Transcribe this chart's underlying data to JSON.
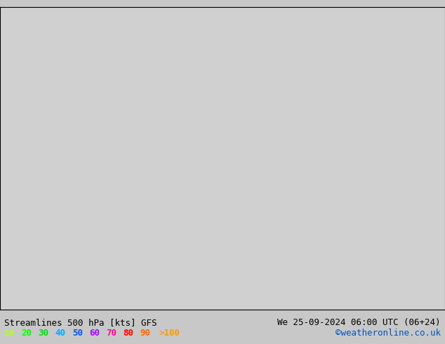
{
  "title_left": "Streamlines 500 hPa [kts] GFS",
  "title_right": "We 25-09-2024 06:00 UTC (06+24)",
  "credit": "©weatheronline.co.uk",
  "legend_values": [
    10,
    20,
    30,
    40,
    50,
    60,
    70,
    80,
    90
  ],
  "legend_label_extra": ">100",
  "legend_colors": [
    "#adff2f",
    "#00ff00",
    "#00dd00",
    "#00aaff",
    "#0055ff",
    "#aa00ff",
    "#ff00aa",
    "#ff0000",
    "#ff6600",
    "#ff9900"
  ],
  "background_color": "#d8d8d8",
  "land_color": "#e8e8e8",
  "australia_fill": "#c8f0c8",
  "ocean_color": "#d8d8d8",
  "font_color": "#000000",
  "title_fontsize": 9,
  "legend_fontsize": 9,
  "fig_width": 6.34,
  "fig_height": 4.9
}
